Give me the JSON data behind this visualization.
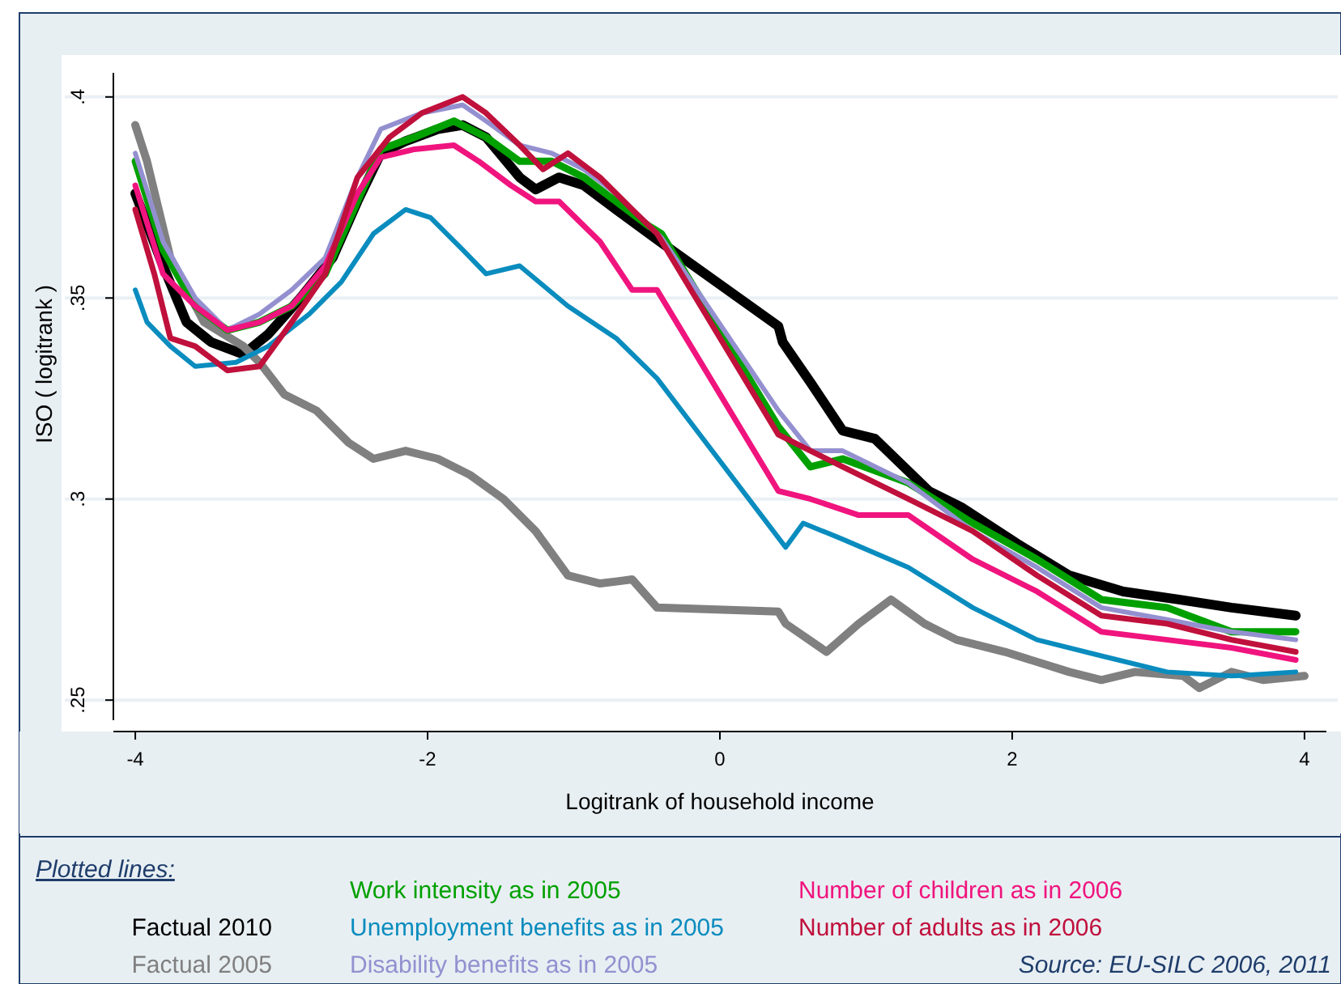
{
  "chart_data": {
    "type": "line",
    "xlabel": "Logitrank of household income",
    "ylabel": "ISO ( logitrank )",
    "legend_title": "Plotted lines:",
    "legend": "bottom",
    "grid": "y",
    "marker": "none",
    "line_style": "solid",
    "xlim": [
      -4.15,
      4.15
    ],
    "ylim": [
      0.245,
      0.406
    ],
    "xticks": [
      -4,
      -2,
      0,
      2,
      4
    ],
    "yticks": [
      {
        "value": 0.25,
        "label": ".25"
      },
      {
        "value": 0.3,
        "label": ".3"
      },
      {
        "value": 0.35,
        "label": ".35"
      },
      {
        "value": 0.4,
        "label": ".4"
      }
    ],
    "annotations": [
      "Source: EU-SILC 2006, 2011"
    ],
    "series": [
      {
        "name": "Factual 2010",
        "color": "#000000",
        "x": [
          -4,
          -3.81,
          -3.65,
          -3.48,
          -3.26,
          -3.09,
          -2.87,
          -2.65,
          -2.48,
          -2.32,
          -2.15,
          -1.93,
          -1.76,
          -1.6,
          -1.37,
          -1.26,
          -1.1,
          -0.93,
          -0.71,
          -0.41,
          0.4,
          0.43,
          0.62,
          0.84,
          1.06,
          1.43,
          1.65,
          2.03,
          2.39,
          2.76,
          3.14,
          3.5,
          3.94
        ],
        "values": [
          0.376,
          0.358,
          0.344,
          0.339,
          0.336,
          0.341,
          0.35,
          0.36,
          0.374,
          0.386,
          0.389,
          0.392,
          0.393,
          0.39,
          0.38,
          0.377,
          0.38,
          0.378,
          0.372,
          0.364,
          0.343,
          0.339,
          0.329,
          0.317,
          0.315,
          0.302,
          0.298,
          0.289,
          0.281,
          0.277,
          0.275,
          0.273,
          0.271
        ]
      },
      {
        "name": "Factual 2005",
        "color": "#808080",
        "x": [
          -4,
          -3.92,
          -3.76,
          -3.53,
          -3.26,
          -3.15,
          -2.98,
          -2.76,
          -2.54,
          -2.37,
          -2.15,
          -1.93,
          -1.71,
          -1.48,
          -1.26,
          -1.04,
          -0.82,
          -0.6,
          -0.43,
          0.4,
          0.45,
          0.73,
          0.95,
          1.17,
          1.4,
          1.62,
          1.95,
          2.39,
          2.61,
          2.84,
          3.17,
          3.28,
          3.5,
          3.72,
          4
        ],
        "values": [
          0.393,
          0.384,
          0.36,
          0.344,
          0.338,
          0.334,
          0.326,
          0.322,
          0.314,
          0.31,
          0.312,
          0.31,
          0.306,
          0.3,
          0.292,
          0.281,
          0.279,
          0.28,
          0.273,
          0.272,
          0.269,
          0.262,
          0.269,
          0.275,
          0.269,
          0.265,
          0.262,
          0.257,
          0.255,
          0.257,
          0.256,
          0.253,
          0.257,
          0.255,
          0.256
        ]
      },
      {
        "name": "Work intensity as in 2005",
        "color": "#00a000",
        "x": [
          -4,
          -3.81,
          -3.59,
          -3.37,
          -3.15,
          -2.93,
          -2.7,
          -2.48,
          -2.32,
          -2.09,
          -1.82,
          -1.6,
          -1.37,
          -1.15,
          -0.93,
          -0.71,
          -0.49,
          -0.4,
          0.4,
          0.62,
          0.84,
          1.29,
          1.73,
          2.17,
          2.61,
          3.06,
          3.5,
          3.94
        ],
        "values": [
          0.384,
          0.362,
          0.348,
          0.342,
          0.344,
          0.348,
          0.356,
          0.374,
          0.387,
          0.39,
          0.394,
          0.39,
          0.384,
          0.384,
          0.38,
          0.374,
          0.368,
          0.366,
          0.318,
          0.308,
          0.31,
          0.304,
          0.294,
          0.285,
          0.275,
          0.273,
          0.267,
          0.267
        ]
      },
      {
        "name": "Unemployment benefits as in 2005",
        "color": "#0a8cbe",
        "x": [
          -4,
          -3.92,
          -3.76,
          -3.59,
          -3.31,
          -3.09,
          -2.81,
          -2.59,
          -2.37,
          -2.15,
          -1.98,
          -1.76,
          -1.6,
          -1.37,
          -1.04,
          -0.71,
          -0.43,
          0.45,
          0.57,
          0.84,
          1.29,
          1.73,
          2.17,
          2.61,
          3.06,
          3.5,
          3.94
        ],
        "values": [
          0.352,
          0.344,
          0.338,
          0.333,
          0.334,
          0.338,
          0.346,
          0.354,
          0.366,
          0.372,
          0.37,
          0.362,
          0.356,
          0.358,
          0.348,
          0.34,
          0.33,
          0.288,
          0.294,
          0.29,
          0.283,
          0.273,
          0.265,
          0.261,
          0.257,
          0.256,
          0.257
        ]
      },
      {
        "name": "Disability benefits as in 2005",
        "color": "#9490d0",
        "x": [
          -4,
          -3.81,
          -3.59,
          -3.37,
          -3.15,
          -2.93,
          -2.7,
          -2.48,
          -2.32,
          -2.04,
          -1.76,
          -1.6,
          -1.37,
          -1.15,
          -0.93,
          -0.71,
          -0.4,
          0.4,
          0.62,
          0.84,
          1.29,
          1.73,
          2.17,
          2.61,
          3.06,
          3.5,
          3.94
        ],
        "values": [
          0.386,
          0.364,
          0.35,
          0.342,
          0.346,
          0.352,
          0.36,
          0.38,
          0.392,
          0.396,
          0.398,
          0.394,
          0.388,
          0.386,
          0.382,
          0.376,
          0.365,
          0.322,
          0.312,
          0.312,
          0.304,
          0.292,
          0.283,
          0.273,
          0.27,
          0.267,
          0.265
        ]
      },
      {
        "name": "Number of children as in 2006",
        "color": "#f0147e",
        "x": [
          -4,
          -3.81,
          -3.59,
          -3.37,
          -3.15,
          -2.93,
          -2.7,
          -2.48,
          -2.32,
          -2.09,
          -1.82,
          -1.65,
          -1.43,
          -1.26,
          -1.1,
          -0.82,
          -0.6,
          -0.43,
          0.4,
          0.62,
          0.95,
          1.29,
          1.73,
          2.17,
          2.61,
          3.06,
          3.5,
          3.94
        ],
        "values": [
          0.378,
          0.356,
          0.348,
          0.342,
          0.344,
          0.348,
          0.358,
          0.376,
          0.385,
          0.387,
          0.388,
          0.384,
          0.378,
          0.374,
          0.374,
          0.364,
          0.352,
          0.352,
          0.302,
          0.3,
          0.296,
          0.296,
          0.285,
          0.277,
          0.267,
          0.265,
          0.263,
          0.26
        ]
      },
      {
        "name": "Number of adults as in 2006",
        "color": "#c0103c",
        "x": [
          -4,
          -3.87,
          -3.76,
          -3.59,
          -3.37,
          -3.15,
          -2.93,
          -2.7,
          -2.48,
          -2.26,
          -2.04,
          -1.76,
          -1.6,
          -1.37,
          -1.21,
          -1.04,
          -0.82,
          -0.6,
          -0.43,
          0.4,
          0.62,
          0.84,
          1.29,
          1.73,
          2.17,
          2.61,
          3.06,
          3.5,
          3.94
        ],
        "values": [
          0.372,
          0.356,
          0.34,
          0.338,
          0.332,
          0.333,
          0.344,
          0.356,
          0.38,
          0.39,
          0.396,
          0.4,
          0.396,
          0.388,
          0.382,
          0.386,
          0.38,
          0.372,
          0.366,
          0.316,
          0.312,
          0.308,
          0.3,
          0.292,
          0.281,
          0.271,
          0.269,
          0.265,
          0.262
        ]
      }
    ]
  }
}
